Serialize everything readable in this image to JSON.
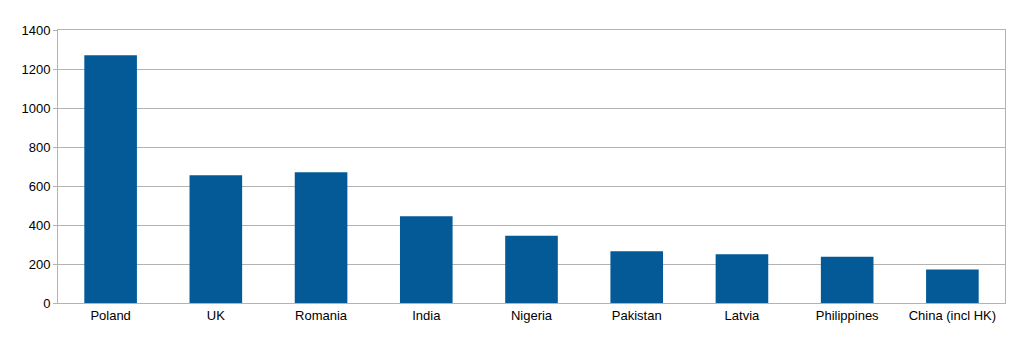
{
  "chart_data": {
    "type": "bar",
    "categories": [
      "Poland",
      "UK",
      "Romania",
      "India",
      "Nigeria",
      "Pakistan",
      "Latvia",
      "Philippines",
      "China (incl HK)"
    ],
    "values": [
      1270,
      655,
      670,
      445,
      345,
      265,
      250,
      237,
      172
    ],
    "color": "#045a96",
    "ylim": [
      0,
      1400
    ],
    "yticks": [
      0,
      200,
      400,
      600,
      800,
      1000,
      1200,
      1400
    ],
    "grid": true
  }
}
